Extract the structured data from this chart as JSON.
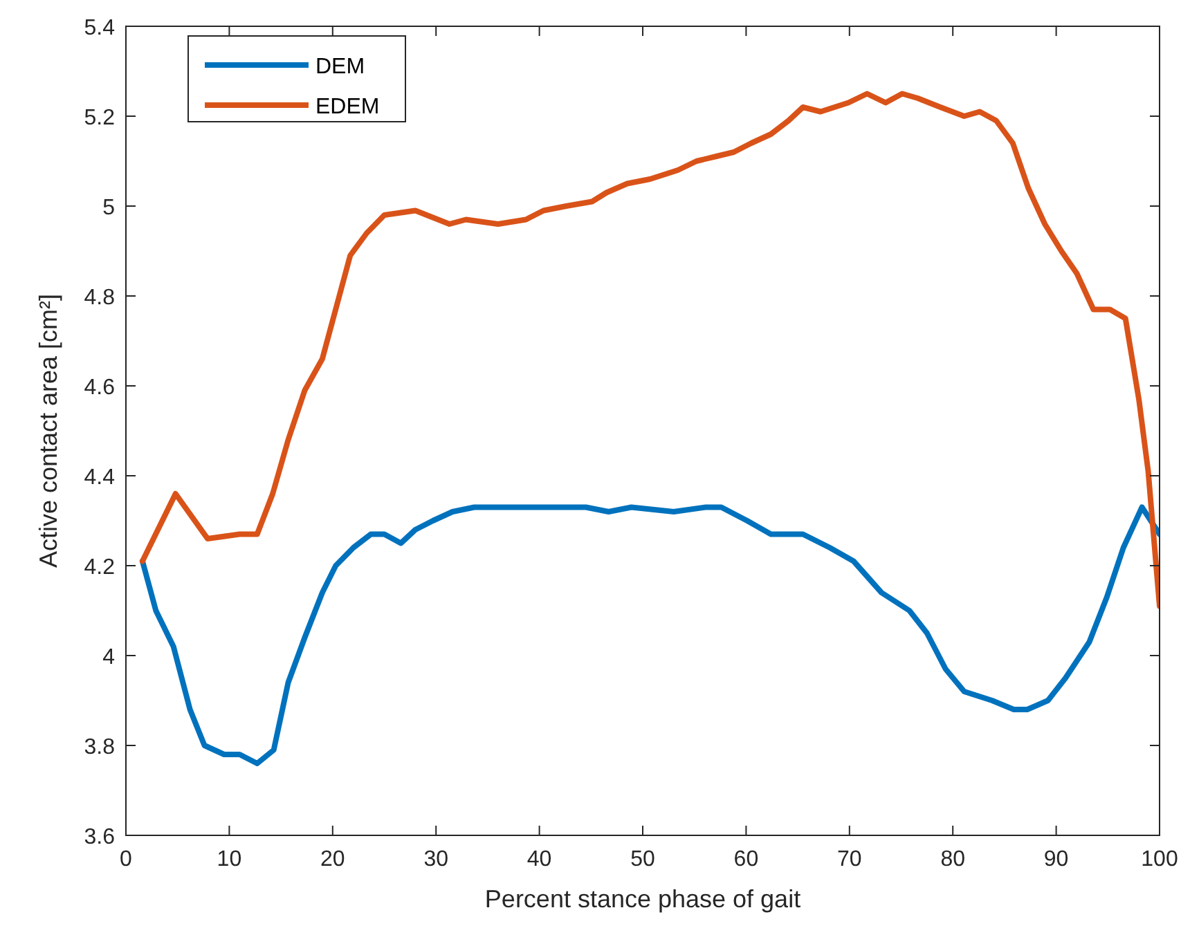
{
  "chart_data": {
    "type": "line",
    "xlabel": "Percent stance phase of gait",
    "ylabel": "Active contact area [cm²]",
    "xlim": [
      0,
      100
    ],
    "ylim": [
      3.6,
      5.4
    ],
    "xticks": [
      0,
      10,
      20,
      30,
      40,
      50,
      60,
      70,
      80,
      90,
      100
    ],
    "yticks": [
      3.6,
      3.8,
      {
        "value": 4,
        "label": "4"
      },
      4.2,
      4.4,
      4.6,
      4.8,
      {
        "value": 5,
        "label": "5"
      },
      5.2,
      5.4
    ],
    "grid": false,
    "legend": "top left",
    "line_style": "solid",
    "series": [
      {
        "name": "DEM",
        "color": "#0072bd",
        "x": [
          1.6,
          2.9,
          4.6,
          6.2,
          7.6,
          9.5,
          11,
          12.7,
          14.3,
          15.7,
          17.3,
          19,
          20.3,
          22,
          23.7,
          25,
          26.6,
          28,
          29.7,
          31.6,
          33.7,
          35.2,
          37.5,
          42.3,
          44.5,
          46.7,
          48.9,
          53,
          56.1,
          57.6,
          60.1,
          62.4,
          65.5,
          68.1,
          70.4,
          73.1,
          75.8,
          77.5,
          79.3,
          81.1,
          83.8,
          85.9,
          87.2,
          89.2,
          90.9,
          93.2,
          94.9,
          96.5,
          98.3,
          100
        ],
        "values": [
          4.21,
          4.1,
          4.02,
          3.88,
          3.8,
          3.78,
          3.78,
          3.76,
          3.79,
          3.94,
          4.04,
          4.14,
          4.2,
          4.24,
          4.27,
          4.27,
          4.25,
          4.28,
          4.3,
          4.32,
          4.33,
          4.33,
          4.33,
          4.33,
          4.33,
          4.32,
          4.33,
          4.32,
          4.33,
          4.33,
          4.3,
          4.27,
          4.27,
          4.24,
          4.21,
          4.14,
          4.1,
          4.05,
          3.97,
          3.92,
          3.9,
          3.88,
          3.88,
          3.9,
          3.95,
          4.03,
          4.13,
          4.24,
          4.33,
          4.27
        ]
      },
      {
        "name": "EDEM",
        "color": "#d95319",
        "x": [
          1.6,
          4.8,
          7.9,
          11,
          12.7,
          14.2,
          15.7,
          17.3,
          19,
          21.7,
          23.3,
          25,
          28,
          31.3,
          32.9,
          36,
          38.7,
          40.4,
          42.6,
          45.1,
          46.5,
          48.5,
          50.7,
          53.4,
          55.2,
          57,
          58.8,
          60.5,
          62.4,
          64.1,
          65.5,
          67.2,
          69.9,
          71.7,
          73.5,
          75.1,
          76.6,
          78.8,
          81.1,
          82.6,
          84.2,
          85.8,
          87.3,
          88.9,
          90.5,
          92,
          93.6,
          95.2,
          96.7,
          98,
          98.9,
          100
        ],
        "values": [
          4.21,
          4.36,
          4.26,
          4.27,
          4.27,
          4.36,
          4.48,
          4.59,
          4.66,
          4.89,
          4.94,
          4.98,
          4.99,
          4.96,
          4.97,
          4.96,
          4.97,
          4.99,
          5,
          5.01,
          5.03,
          5.05,
          5.06,
          5.08,
          5.1,
          5.11,
          5.12,
          5.14,
          5.16,
          5.19,
          5.22,
          5.21,
          5.23,
          5.25,
          5.23,
          5.25,
          5.24,
          5.22,
          5.2,
          5.21,
          5.19,
          5.14,
          5.04,
          4.96,
          4.9,
          4.85,
          4.77,
          4.77,
          4.75,
          4.57,
          4.41,
          4.11
        ]
      }
    ]
  }
}
